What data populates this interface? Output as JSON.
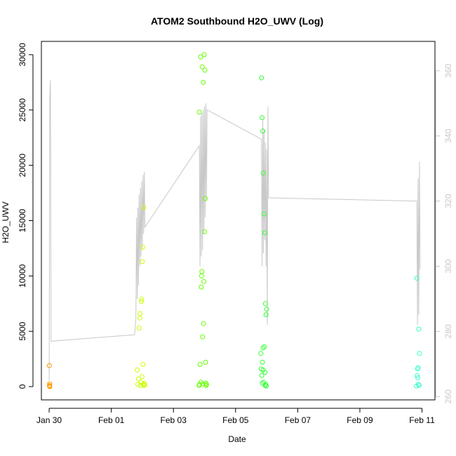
{
  "chart_data": {
    "type": "scatter",
    "title": "ATOM2 Southbound H2O_UWV (Log)",
    "xlabel": "Date",
    "ylabel": "H2O_UWV",
    "x_date_range": [
      "2016-01-29T18:00",
      "2016-02-11T10:00"
    ],
    "ylim": [
      -1200,
      31200
    ],
    "yticks": [
      0,
      5000,
      10000,
      15000,
      20000,
      25000,
      30000
    ],
    "xticks": [
      {
        "date": "2016-01-30T00:00",
        "label": "Jan 30"
      },
      {
        "date": "2016-02-01T00:00",
        "label": "Feb 01"
      },
      {
        "date": "2016-02-03T00:00",
        "label": "Feb 03"
      },
      {
        "date": "2016-02-05T00:00",
        "label": "Feb 05"
      },
      {
        "date": "2016-02-07T00:00",
        "label": "Feb 07"
      },
      {
        "date": "2016-02-09T00:00",
        "label": "Feb 09"
      },
      {
        "date": "2016-02-11T00:00",
        "label": "Feb 11"
      }
    ],
    "right_axis": {
      "ylim": [
        259,
        369
      ],
      "ticks": [
        260,
        280,
        300,
        320,
        340,
        360
      ],
      "color": "#c8c8c8"
    },
    "grid": false,
    "legend": "none",
    "series": [
      {
        "color": "#ff9900",
        "points": [
          [
            "2016-01-30T00:10",
            1900
          ],
          [
            "2016-01-30T00:15",
            100
          ],
          [
            "2016-01-30T00:20",
            50
          ],
          [
            "2016-01-30T00:25",
            250
          ],
          [
            "2016-01-30T00:30",
            0
          ]
        ]
      },
      {
        "color": "#ccff00",
        "points": [
          [
            "2016-02-01T20:00",
            1500
          ],
          [
            "2016-02-01T20:30",
            200
          ],
          [
            "2016-02-01T21:00",
            700
          ],
          [
            "2016-02-01T21:30",
            5300
          ],
          [
            "2016-02-01T22:00",
            6200
          ],
          [
            "2016-02-01T22:15",
            6600
          ],
          [
            "2016-02-01T22:30",
            100
          ],
          [
            "2016-02-01T23:00",
            400
          ],
          [
            "2016-02-01T23:15",
            7700
          ],
          [
            "2016-02-01T23:30",
            7900
          ],
          [
            "2016-02-01T23:45",
            900
          ],
          [
            "2016-02-02T00:00",
            11300
          ],
          [
            "2016-02-02T00:15",
            12600
          ],
          [
            "2016-02-02T00:30",
            2000
          ],
          [
            "2016-02-02T00:45",
            200
          ],
          [
            "2016-02-02T01:00",
            16200
          ],
          [
            "2016-02-02T01:15",
            100
          ],
          [
            "2016-02-02T01:30",
            300
          ],
          [
            "2016-02-02T01:45",
            150
          ]
        ]
      },
      {
        "color": "#66ff00",
        "points": [
          [
            "2016-02-03T20:00",
            24800
          ],
          [
            "2016-02-03T20:30",
            2000
          ],
          [
            "2016-02-03T21:00",
            29800
          ],
          [
            "2016-02-03T21:30",
            9000
          ],
          [
            "2016-02-03T21:45",
            10000
          ],
          [
            "2016-02-03T22:00",
            10400
          ],
          [
            "2016-02-03T22:15",
            28900
          ],
          [
            "2016-02-03T22:30",
            4500
          ],
          [
            "2016-02-03T23:00",
            27500
          ],
          [
            "2016-02-03T23:15",
            5700
          ],
          [
            "2016-02-03T23:30",
            9500
          ],
          [
            "2016-02-03T23:45",
            30000
          ],
          [
            "2016-02-04T00:00",
            14000
          ],
          [
            "2016-02-04T00:15",
            28600
          ],
          [
            "2016-02-04T00:30",
            17000
          ],
          [
            "2016-02-04T00:45",
            2200
          ],
          [
            "2016-02-04T01:00",
            300
          ],
          [
            "2016-02-04T01:15",
            100
          ],
          [
            "2016-02-03T20:15",
            200
          ],
          [
            "2016-02-03T21:15",
            400
          ],
          [
            "2016-02-03T22:45",
            250
          ],
          [
            "2016-02-03T19:45",
            100
          ],
          [
            "2016-02-04T01:30",
            200
          ]
        ]
      },
      {
        "color": "#33ff33",
        "points": [
          [
            "2016-02-05T20:00",
            27900
          ],
          [
            "2016-02-05T20:30",
            24300
          ],
          [
            "2016-02-05T21:00",
            23100
          ],
          [
            "2016-02-05T21:30",
            19300
          ],
          [
            "2016-02-05T22:00",
            15600
          ],
          [
            "2016-02-05T22:30",
            13900
          ],
          [
            "2016-02-05T23:00",
            7500
          ],
          [
            "2016-02-05T23:30",
            6500
          ],
          [
            "2016-02-06T00:00",
            7000
          ],
          [
            "2016-02-05T19:30",
            3000
          ],
          [
            "2016-02-05T20:15",
            1000
          ],
          [
            "2016-02-05T21:15",
            3500
          ],
          [
            "2016-02-05T22:15",
            3600
          ],
          [
            "2016-02-05T22:45",
            1300
          ],
          [
            "2016-02-05T23:15",
            200
          ],
          [
            "2016-02-05T23:45",
            50
          ],
          [
            "2016-02-05T19:45",
            1600
          ],
          [
            "2016-02-05T20:45",
            2200
          ],
          [
            "2016-02-05T21:45",
            400
          ],
          [
            "2016-02-05T22:50",
            100
          ],
          [
            "2016-02-05T21:10",
            1500
          ],
          [
            "2016-02-05T20:40",
            300
          ]
        ]
      },
      {
        "color": "#33ffcc",
        "points": [
          [
            "2016-02-10T20:00",
            9800
          ],
          [
            "2016-02-10T21:30",
            5200
          ],
          [
            "2016-02-10T22:00",
            3000
          ],
          [
            "2016-02-10T20:30",
            1600
          ],
          [
            "2016-02-10T21:00",
            1700
          ],
          [
            "2016-02-10T20:15",
            1000
          ],
          [
            "2016-02-10T20:45",
            800
          ],
          [
            "2016-02-10T21:15",
            200
          ],
          [
            "2016-02-10T21:45",
            100
          ],
          [
            "2016-02-10T19:45",
            50
          ]
        ]
      }
    ],
    "reference_line": {
      "color": "#c8c8c8",
      "axis": "right",
      "points": [
        [
          "2016-01-30T00:00",
          265
        ],
        [
          "2016-01-30T00:30",
          352
        ],
        [
          "2016-01-30T01:00",
          357
        ],
        [
          "2016-01-30T01:30",
          277
        ],
        [
          "2016-02-01T18:00",
          279
        ],
        [
          "2016-02-01T19:00",
          284
        ],
        [
          "2016-02-01T19:30",
          315
        ],
        [
          "2016-02-01T20:00",
          290
        ],
        [
          "2016-02-01T20:30",
          318
        ],
        [
          "2016-02-01T21:00",
          294
        ],
        [
          "2016-02-01T21:30",
          322
        ],
        [
          "2016-02-01T22:00",
          300
        ],
        [
          "2016-02-01T22:30",
          324
        ],
        [
          "2016-02-01T23:00",
          303
        ],
        [
          "2016-02-01T23:30",
          326
        ],
        [
          "2016-02-02T00:00",
          305
        ],
        [
          "2016-02-02T00:30",
          328
        ],
        [
          "2016-02-02T01:00",
          310
        ],
        [
          "2016-02-02T01:30",
          329
        ],
        [
          "2016-02-02T02:00",
          312
        ],
        [
          "2016-02-03T20:00",
          337
        ],
        [
          "2016-02-03T20:30",
          300
        ],
        [
          "2016-02-03T21:00",
          346
        ],
        [
          "2016-02-03T21:30",
          303
        ],
        [
          "2016-02-03T22:00",
          347
        ],
        [
          "2016-02-03T22:30",
          305
        ],
        [
          "2016-02-03T23:00",
          348
        ],
        [
          "2016-02-03T23:30",
          310
        ],
        [
          "2016-02-04T00:00",
          349
        ],
        [
          "2016-02-04T00:30",
          315
        ],
        [
          "2016-02-04T01:00",
          350
        ],
        [
          "2016-02-04T01:30",
          320
        ],
        [
          "2016-02-04T02:00",
          348
        ],
        [
          "2016-02-05T20:00",
          339
        ],
        [
          "2016-02-05T20:30",
          300
        ],
        [
          "2016-02-05T21:00",
          345
        ],
        [
          "2016-02-05T21:30",
          304
        ],
        [
          "2016-02-05T22:00",
          342
        ],
        [
          "2016-02-05T22:30",
          308
        ],
        [
          "2016-02-05T23:00",
          338
        ],
        [
          "2016-02-05T23:30",
          300
        ],
        [
          "2016-02-06T00:00",
          336
        ],
        [
          "2016-02-06T00:30",
          282
        ],
        [
          "2016-02-06T01:00",
          349
        ],
        [
          "2016-02-06T01:30",
          321
        ],
        [
          "2016-02-10T20:00",
          320
        ],
        [
          "2016-02-10T20:30",
          282
        ],
        [
          "2016-02-10T21:00",
          327
        ],
        [
          "2016-02-10T21:30",
          285
        ],
        [
          "2016-02-10T22:00",
          332
        ],
        [
          "2016-02-10T22:30",
          299
        ]
      ]
    }
  }
}
